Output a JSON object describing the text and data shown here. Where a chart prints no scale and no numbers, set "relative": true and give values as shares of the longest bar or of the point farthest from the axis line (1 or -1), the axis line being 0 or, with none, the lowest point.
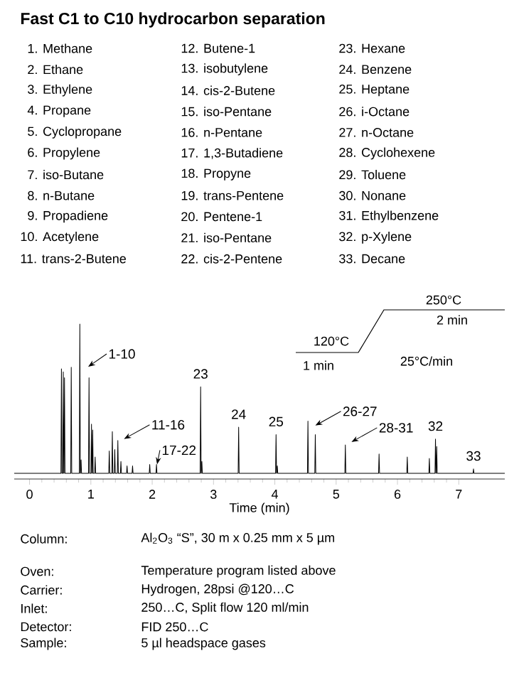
{
  "chart_data": {
    "type": "line",
    "relative": true,
    "title": "Fast C1 to C10 hydrocarbon separation",
    "xlabel": "Time (min)",
    "color": "#000000",
    "xlim": [
      -0.25,
      7.75
    ],
    "xticks": [
      0,
      1,
      2,
      3,
      4,
      5,
      6,
      7
    ],
    "x": [
      -0.25,
      0.512,
      0.52,
      0.528,
      0.542,
      0.55,
      0.558,
      0.562,
      0.57,
      0.578,
      0.672,
      0.68,
      0.688,
      0.812,
      0.82,
      0.828,
      0.832,
      0.84,
      0.848,
      0.962,
      0.97,
      0.978,
      1.002,
      1.01,
      1.018,
      1.022,
      1.03,
      1.038,
      1.062,
      1.07,
      1.078,
      1.292,
      1.3,
      1.308,
      1.342,
      1.35,
      1.358,
      1.382,
      1.39,
      1.398,
      1.432,
      1.44,
      1.448,
      1.482,
      1.49,
      1.498,
      1.582,
      1.59,
      1.598,
      1.672,
      1.68,
      1.688,
      1.952,
      1.96,
      1.968,
      2.062,
      2.07,
      2.078,
      2.782,
      2.79,
      2.798,
      2.802,
      2.81,
      2.818,
      3.402,
      3.41,
      3.418,
      4.012,
      4.02,
      4.028,
      4.032,
      4.04,
      4.048,
      4.532,
      4.54,
      4.548,
      4.652,
      4.66,
      4.668,
      5.142,
      5.15,
      5.158,
      5.692,
      5.7,
      5.708,
      6.152,
      6.16,
      6.168,
      6.512,
      6.52,
      6.528,
      6.612,
      6.62,
      6.628,
      6.632,
      6.64,
      6.648,
      7.232,
      7.24,
      7.248,
      7.75
    ],
    "values": [
      0,
      0,
      0.7,
      0,
      0,
      0.68,
      0,
      0,
      0.64,
      0,
      0,
      0.71,
      0,
      0,
      1,
      0,
      0,
      0.09,
      0,
      0,
      0.64,
      0,
      0,
      0.33,
      0,
      0,
      0.29,
      0,
      0,
      0.11,
      0,
      0,
      0.15,
      0,
      0,
      0.28,
      0,
      0,
      0.16,
      0,
      0,
      0.22,
      0,
      0,
      0.08,
      0,
      0,
      0.05,
      0,
      0,
      0.05,
      0,
      0,
      0.06,
      0,
      0,
      0.06,
      0,
      0,
      0.58,
      0,
      0,
      0.08,
      0,
      0,
      0.31,
      0,
      0,
      0.26,
      0,
      0,
      0.05,
      0,
      0,
      0.35,
      0,
      0,
      0.26,
      0,
      0,
      0.19,
      0,
      0,
      0.13,
      0,
      0,
      0.11,
      0,
      0,
      0.1,
      0,
      0,
      0.23,
      0,
      0,
      0.18,
      0,
      0,
      0.03,
      0,
      0
    ],
    "annotations": [
      "1. Methane",
      "2. Ethane",
      "3. Ethylene",
      "4. Propane",
      "5. Cyclopropane",
      "6. Propylene",
      "7. iso-Butane",
      "8. n-Butane",
      "9. Propadiene",
      "10. Acetylene",
      "11. trans-2-Butene",
      "12. Butene-1",
      "13. isobutylene",
      "14. cis-2-Butene",
      "15. iso-Pentane",
      "16. n-Pentane",
      "17. 1,3-Butadiene",
      "18. Propyne",
      "19. trans-Pentene",
      "20. Pentene-1",
      "21. iso-Pentane",
      "22. cis-2-Pentene",
      "23. Hexane",
      "24. Benzene",
      "25. Heptane",
      "26. i-Octane",
      "27. n-Octane",
      "28. Cyclohexene",
      "29. Toluene",
      "30. Nonane",
      "31. Ethylbenzene",
      "32. p-Xylene",
      "33. Decane",
      "Column:",
      "Al$_{2}$O$_{3}$ “S”, 30 m x 0.25 mm x 5 µm",
      "Oven:",
      "Temperature program listed above",
      "Carrier:",
      "Hydrogen, 28psi @120…C",
      "Inlet:",
      "250…C, Split flow 120 ml/min",
      "Detector:",
      "FID 250…C",
      "Sample:",
      "5 µl headspace gases",
      "250°C",
      "2 min",
      "120°C",
      "25°C/min",
      "1 min",
      "1-10",
      {
        "text": "11-16",
        "x": 1.54,
        "y": 0.23
      },
      {
        "text": "17-22",
        "x": 2.08,
        "y": 0.06
      },
      {
        "text": "26-27",
        "x": 4.66,
        "y": 0.32
      },
      {
        "text": "28-31",
        "x": 5.25,
        "y": 0.21
      },
      {
        "text": "23",
        "x": 2.79,
        "y": 0.58
      },
      {
        "text": "24",
        "x": 3.41,
        "y": 0.31
      },
      {
        "text": "25",
        "x": 4.02,
        "y": 0.26
      },
      {
        "text": "32",
        "x": 6.62,
        "y": 0.23
      },
      {
        "text": "33",
        "x": 7.24,
        "y": 0.03
      }
    ]
  }
}
